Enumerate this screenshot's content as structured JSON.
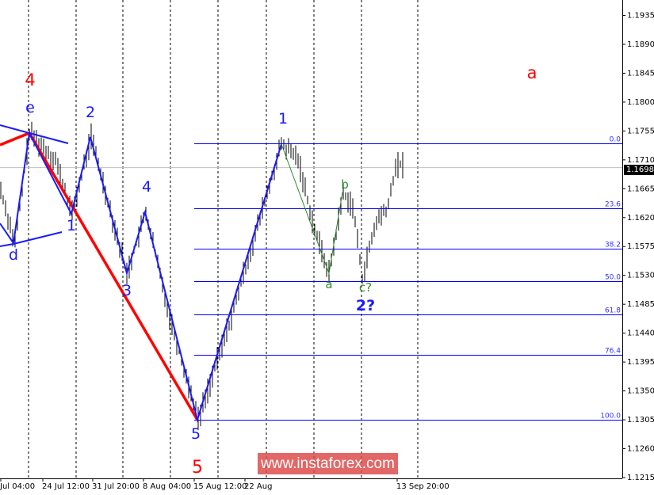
{
  "chart_data": {
    "type": "ohlc",
    "symbol_timeframe_hidden": null,
    "y_axis": {
      "ylim": [
        1.12,
        1.196
      ],
      "ticks": [
        "1.1935",
        "1.1890",
        "1.1845",
        "1.1800",
        "1.1755",
        "1.1710",
        "1.1665",
        "1.1620",
        "1.1575",
        "1.1530",
        "1.1485",
        "1.1440",
        "1.1395",
        "1.1350",
        "1.1305",
        "1.1260",
        "1.1215"
      ]
    },
    "x_axis": {
      "tick_labels": [
        "Jul 04:00",
        "24 Jul 12:00",
        "31 Jul 20:00",
        "8 Aug 04:00",
        "15 Aug 12:00",
        "22 Aug",
        "13 Sep 20:00"
      ],
      "grid": "dashed-vertical"
    },
    "current_price": "1.1698",
    "price_path": [
      {
        "bar": 0,
        "price": 1.1663
      },
      {
        "bar": 6,
        "price": 1.1579
      },
      {
        "bar": 12,
        "price": 1.1752
      },
      {
        "bar": 23,
        "price": 1.171
      },
      {
        "bar": 30,
        "price": 1.1626
      },
      {
        "bar": 38,
        "price": 1.1746
      },
      {
        "bar": 53,
        "price": 1.1533
      },
      {
        "bar": 61,
        "price": 1.1628
      },
      {
        "bar": 71,
        "price": 1.1466
      },
      {
        "bar": 83,
        "price": 1.1305
      },
      {
        "bar": 97,
        "price": 1.1466
      },
      {
        "bar": 118,
        "price": 1.1734
      },
      {
        "bar": 125,
        "price": 1.1712
      },
      {
        "bar": 132,
        "price": 1.1601
      },
      {
        "bar": 138,
        "price": 1.1533
      },
      {
        "bar": 144,
        "price": 1.1659
      },
      {
        "bar": 148,
        "price": 1.1638
      },
      {
        "bar": 152,
        "price": 1.1527
      },
      {
        "bar": 158,
        "price": 1.1614
      },
      {
        "bar": 163,
        "price": 1.1638
      },
      {
        "bar": 166,
        "price": 1.17
      },
      {
        "bar": 169,
        "price": 1.1703
      }
    ],
    "fibonacci": {
      "high": 1.1736,
      "low": 1.1305,
      "levels": [
        "0.0",
        "23.6",
        "38.2",
        "50.0",
        "61.8",
        "76.4",
        "100.0"
      ],
      "color": "#0000ff"
    },
    "wave_labels": {
      "red_4": "4",
      "e": "e",
      "d": "d",
      "w1": "1",
      "w2": "2",
      "w3": "3",
      "w4": "4",
      "w5": "5",
      "red_5": "5",
      "new1": "1",
      "a": "a",
      "b": "b",
      "c": "c?",
      "new2": "2?",
      "red_a": "a"
    },
    "colors": {
      "wave_blue": "#1a1aff",
      "wave_red": "#ff0000",
      "wave_green": "#2e8b2e",
      "bars": "#000000",
      "current_price_line": "#c0c0c0"
    }
  },
  "watermark": "www.instaforex.com"
}
